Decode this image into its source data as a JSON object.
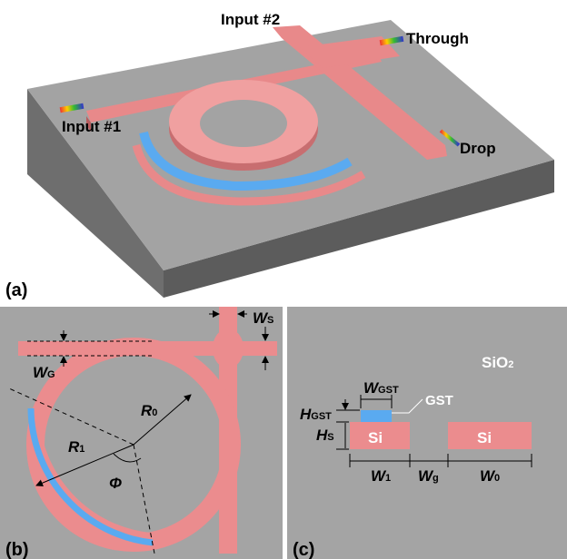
{
  "panel_a": {
    "tag": "(a)",
    "input2": "Input #2",
    "through": "Through",
    "input1": "Input #1",
    "drop": "Drop"
  },
  "panel_b": {
    "tag": "(b)",
    "ws": {
      "main": "W",
      "sub": "S"
    },
    "wg": {
      "main": "W",
      "sub": "G"
    },
    "r0": {
      "main": "R",
      "sub": "0"
    },
    "r1": {
      "main": "R",
      "sub": "1"
    },
    "phi": "Φ"
  },
  "panel_c": {
    "tag": "(c)",
    "sio2": {
      "main": "SiO",
      "sub": "2"
    },
    "wgst": {
      "main": "W",
      "sub": "GST"
    },
    "gst": "GST",
    "hgst": {
      "main": "H",
      "sub": "GST"
    },
    "hs": {
      "main": "H",
      "sub": "S"
    },
    "si_left": "Si",
    "si_right": "Si",
    "w1": {
      "main": "W",
      "sub": "1"
    },
    "wg": {
      "main": "W",
      "sub": "g"
    },
    "w0": {
      "main": "W",
      "sub": "0"
    }
  }
}
